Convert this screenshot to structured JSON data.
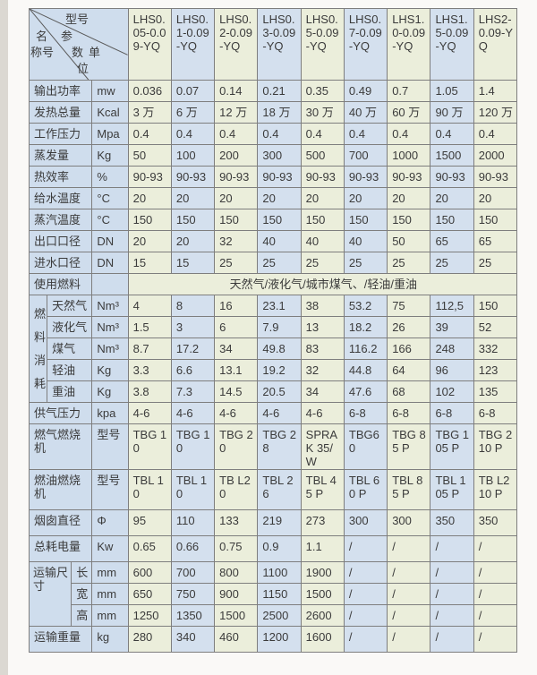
{
  "colors": {
    "green": "#ebeedb",
    "blue": "#d4e0ee",
    "label_blue": "#cfdded",
    "border": "#7e7e7e",
    "outer_border": "#4f4f4f",
    "text": "#3b3b3b",
    "page_background": "#faf9f7",
    "left_strip": "#dbd8d2"
  },
  "header": {
    "corner": {
      "top": "型号",
      "left1": "名",
      "left2": "称号",
      "mid1": "参",
      "mid2": "数",
      "right1": "单",
      "right2": "位"
    },
    "models": [
      "LHS0.05-0.09-YQ",
      "LHS0.1-0.09-YQ",
      "LHS0.2-0.09-YQ",
      "LHS0.3-0.09-YQ",
      "LHS0.5-0.09-YQ",
      "LHS0.7-0.09-YQ",
      "LHS1.0-0.09-YQ",
      "LHS1.5-0.09-YQ",
      "LHS2-0.09-YQ"
    ]
  },
  "sections": {
    "top_rows": [
      {
        "label": "输出功率",
        "unit": "mw",
        "values": [
          "0.036",
          "0.07",
          "0.14",
          "0.21",
          "0.35",
          "0.49",
          "0.7",
          "1.05",
          "1.4"
        ]
      },
      {
        "label": "发热总量",
        "unit": "Kcal",
        "values": [
          "3 万",
          "6 万",
          "12 万",
          "18 万",
          "30 万",
          "40 万",
          "60 万",
          "90 万",
          "120 万"
        ]
      },
      {
        "label": "工作压力",
        "unit": "Mpa",
        "values": [
          "0.4",
          "0.4",
          "0.4",
          "0.4",
          "0.4",
          "0.4",
          "0.4",
          "0.4",
          "0.4"
        ]
      },
      {
        "label": "蒸发量",
        "unit": "Kg",
        "values": [
          "50",
          "100",
          "200",
          "300",
          "500",
          "700",
          "1000",
          "1500",
          "2000"
        ]
      },
      {
        "label": "热效率",
        "unit": "%",
        "values": [
          "90-93",
          "90-93",
          "90-93",
          "90-93",
          "90-93",
          "90-93",
          "90-93",
          "90-93",
          "90-93"
        ]
      },
      {
        "label": "给水温度",
        "unit": "°C",
        "values": [
          "20",
          "20",
          "20",
          "20",
          "20",
          "20",
          "20",
          "20",
          "20"
        ]
      },
      {
        "label": "蒸汽温度",
        "unit": "°C",
        "values": [
          "150",
          "150",
          "150",
          "150",
          "150",
          "150",
          "150",
          "150",
          "150"
        ]
      },
      {
        "label": "出口口径",
        "unit": "DN",
        "values": [
          "20",
          "20",
          "32",
          "40",
          "40",
          "40",
          "50",
          "65",
          "65"
        ]
      },
      {
        "label": "进水口径",
        "unit": "DN",
        "values": [
          "15",
          "15",
          "25",
          "25",
          "25",
          "25",
          "25",
          "25",
          "25"
        ]
      }
    ],
    "fuel_type_row": {
      "label": "使用燃料",
      "unit": "",
      "span_text": "天然气/液化气/城市煤气、/轻油/重油"
    },
    "fuel_consumption": {
      "group_label": "燃料消耗",
      "rows": [
        {
          "label": "天然气",
          "unit": "Nm³",
          "values": [
            "4",
            "8",
            "16",
            "23.1",
            "38",
            "53.2",
            "75",
            "112,5",
            "150"
          ]
        },
        {
          "label": "液化气",
          "unit": "Nm³",
          "values": [
            "1.5",
            "3",
            "6",
            "7.9",
            "13",
            "18.2",
            "26",
            "39",
            "52"
          ]
        },
        {
          "label": "煤气",
          "unit": "Nm³",
          "values": [
            "8.7",
            "17.2",
            "34",
            "49.8",
            "83",
            "116.2",
            "166",
            "248",
            "332"
          ]
        },
        {
          "label": "轻油",
          "unit": "Kg",
          "values": [
            "3.3",
            "6.6",
            "13.1",
            "19.2",
            "32",
            "44.8",
            "64",
            "96",
            "123"
          ]
        },
        {
          "label": "重油",
          "unit": "Kg",
          "values": [
            "3.8",
            "7.3",
            "14.5",
            "20.5",
            "34",
            "47.6",
            "68",
            "102",
            "135"
          ]
        }
      ]
    },
    "mid_rows": [
      {
        "label": "供气压力",
        "unit": "kpa",
        "values": [
          "4-6",
          "4-6",
          "4-6",
          "4-6",
          "4-6",
          "6-8",
          "6-8",
          "6-8",
          "6-8"
        ]
      },
      {
        "label": "燃气燃烧机",
        "unit": "型号",
        "values": [
          "TBG 10",
          "TBG 10",
          "TBG 20",
          "TBG 28",
          "SPRAK 35/W",
          "TBG60",
          "TBG 85 P",
          "TBG 105 P",
          "TBG 210 P"
        ]
      },
      {
        "label": "燃油燃烧机",
        "unit": "型号",
        "values": [
          "TBL 10",
          "TBL 10",
          "TB L20",
          "TBL 26",
          "TBL 45 P",
          "TBL 60 P",
          "TBL 85 P",
          "TBL 105 P",
          "TB L210 P"
        ]
      },
      {
        "label": "烟囱直径",
        "unit": "Φ",
        "values": [
          "95",
          "110",
          "133",
          "219",
          "273",
          "300",
          "300",
          "350",
          "350"
        ]
      },
      {
        "label": "总耗电量",
        "unit": "Kw",
        "values": [
          "0.65",
          "0.66",
          "0.75",
          "0.9",
          "1.1",
          "/",
          "/",
          "/",
          "/"
        ]
      }
    ],
    "transport": {
      "group_label": "运输尺寸",
      "rows": [
        {
          "label": "长",
          "unit": "mm",
          "values": [
            "600",
            "700",
            "800",
            "1100",
            "1900",
            "/",
            "/",
            "/",
            "/"
          ]
        },
        {
          "label": "宽",
          "unit": "mm",
          "values": [
            "650",
            "750",
            "900",
            "1150",
            "1500",
            "/",
            "/",
            "/",
            "/"
          ]
        },
        {
          "label": "高",
          "unit": "mm",
          "values": [
            "1250",
            "1350",
            "1500",
            "2500",
            "2600",
            "/",
            "/",
            "/",
            "/"
          ]
        }
      ]
    },
    "bottom_rows": [
      {
        "label": "运输重量",
        "unit": "kg",
        "values": [
          "280",
          "340",
          "460",
          "1200",
          "1600",
          "/",
          "/",
          "/",
          "/"
        ]
      }
    ]
  }
}
